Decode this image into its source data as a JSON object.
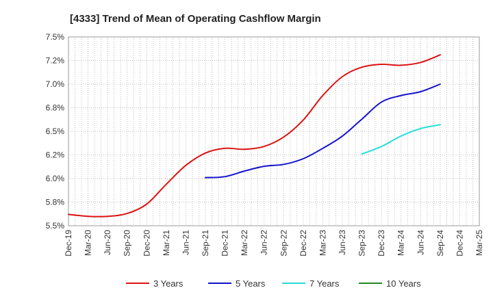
{
  "chart_data": {
    "type": "line",
    "title": "[4333]  Trend of Mean of Operating Cashflow Margin",
    "xlabel": "",
    "ylabel": "",
    "ylim": [
      5.5,
      7.5
    ],
    "yticks": [
      "5.5%",
      "5.8%",
      "6.0%",
      "6.2%",
      "6.5%",
      "6.8%",
      "7.0%",
      "7.2%",
      "7.5%"
    ],
    "xticks": [
      "Dec-19",
      "Mar-20",
      "Jun-20",
      "Sep-20",
      "Dec-20",
      "Mar-21",
      "Jun-21",
      "Sep-21",
      "Dec-21",
      "Mar-22",
      "Jun-22",
      "Sep-22",
      "Dec-22",
      "Mar-23",
      "Jun-23",
      "Sep-23",
      "Dec-23",
      "Mar-24",
      "Jun-24",
      "Sep-24",
      "Dec-24",
      "Mar-25"
    ],
    "grid": true,
    "legend_position": "bottom",
    "series": [
      {
        "name": "3 Years",
        "color": "#dd1111",
        "values": [
          5.62,
          5.6,
          5.6,
          5.63,
          5.73,
          5.94,
          6.14,
          6.27,
          6.32,
          6.31,
          6.34,
          6.44,
          6.62,
          6.88,
          7.08,
          7.18,
          7.21,
          7.2,
          7.23,
          7.31,
          null,
          null
        ]
      },
      {
        "name": "5 Years",
        "color": "#1111cc",
        "values": [
          null,
          null,
          null,
          null,
          null,
          null,
          null,
          6.01,
          6.02,
          6.08,
          6.13,
          6.15,
          6.21,
          6.32,
          6.45,
          6.63,
          6.81,
          6.88,
          6.92,
          7.0,
          null,
          null
        ]
      },
      {
        "name": "7 Years",
        "color": "#22dddd",
        "values": [
          null,
          null,
          null,
          null,
          null,
          null,
          null,
          null,
          null,
          null,
          null,
          null,
          null,
          null,
          null,
          6.26,
          6.34,
          6.45,
          6.53,
          6.57,
          null,
          null
        ]
      },
      {
        "name": "10 Years",
        "color": "#228822",
        "values": [
          null,
          null,
          null,
          null,
          null,
          null,
          null,
          null,
          null,
          null,
          null,
          null,
          null,
          null,
          null,
          null,
          null,
          null,
          null,
          null,
          null,
          null
        ]
      }
    ]
  }
}
